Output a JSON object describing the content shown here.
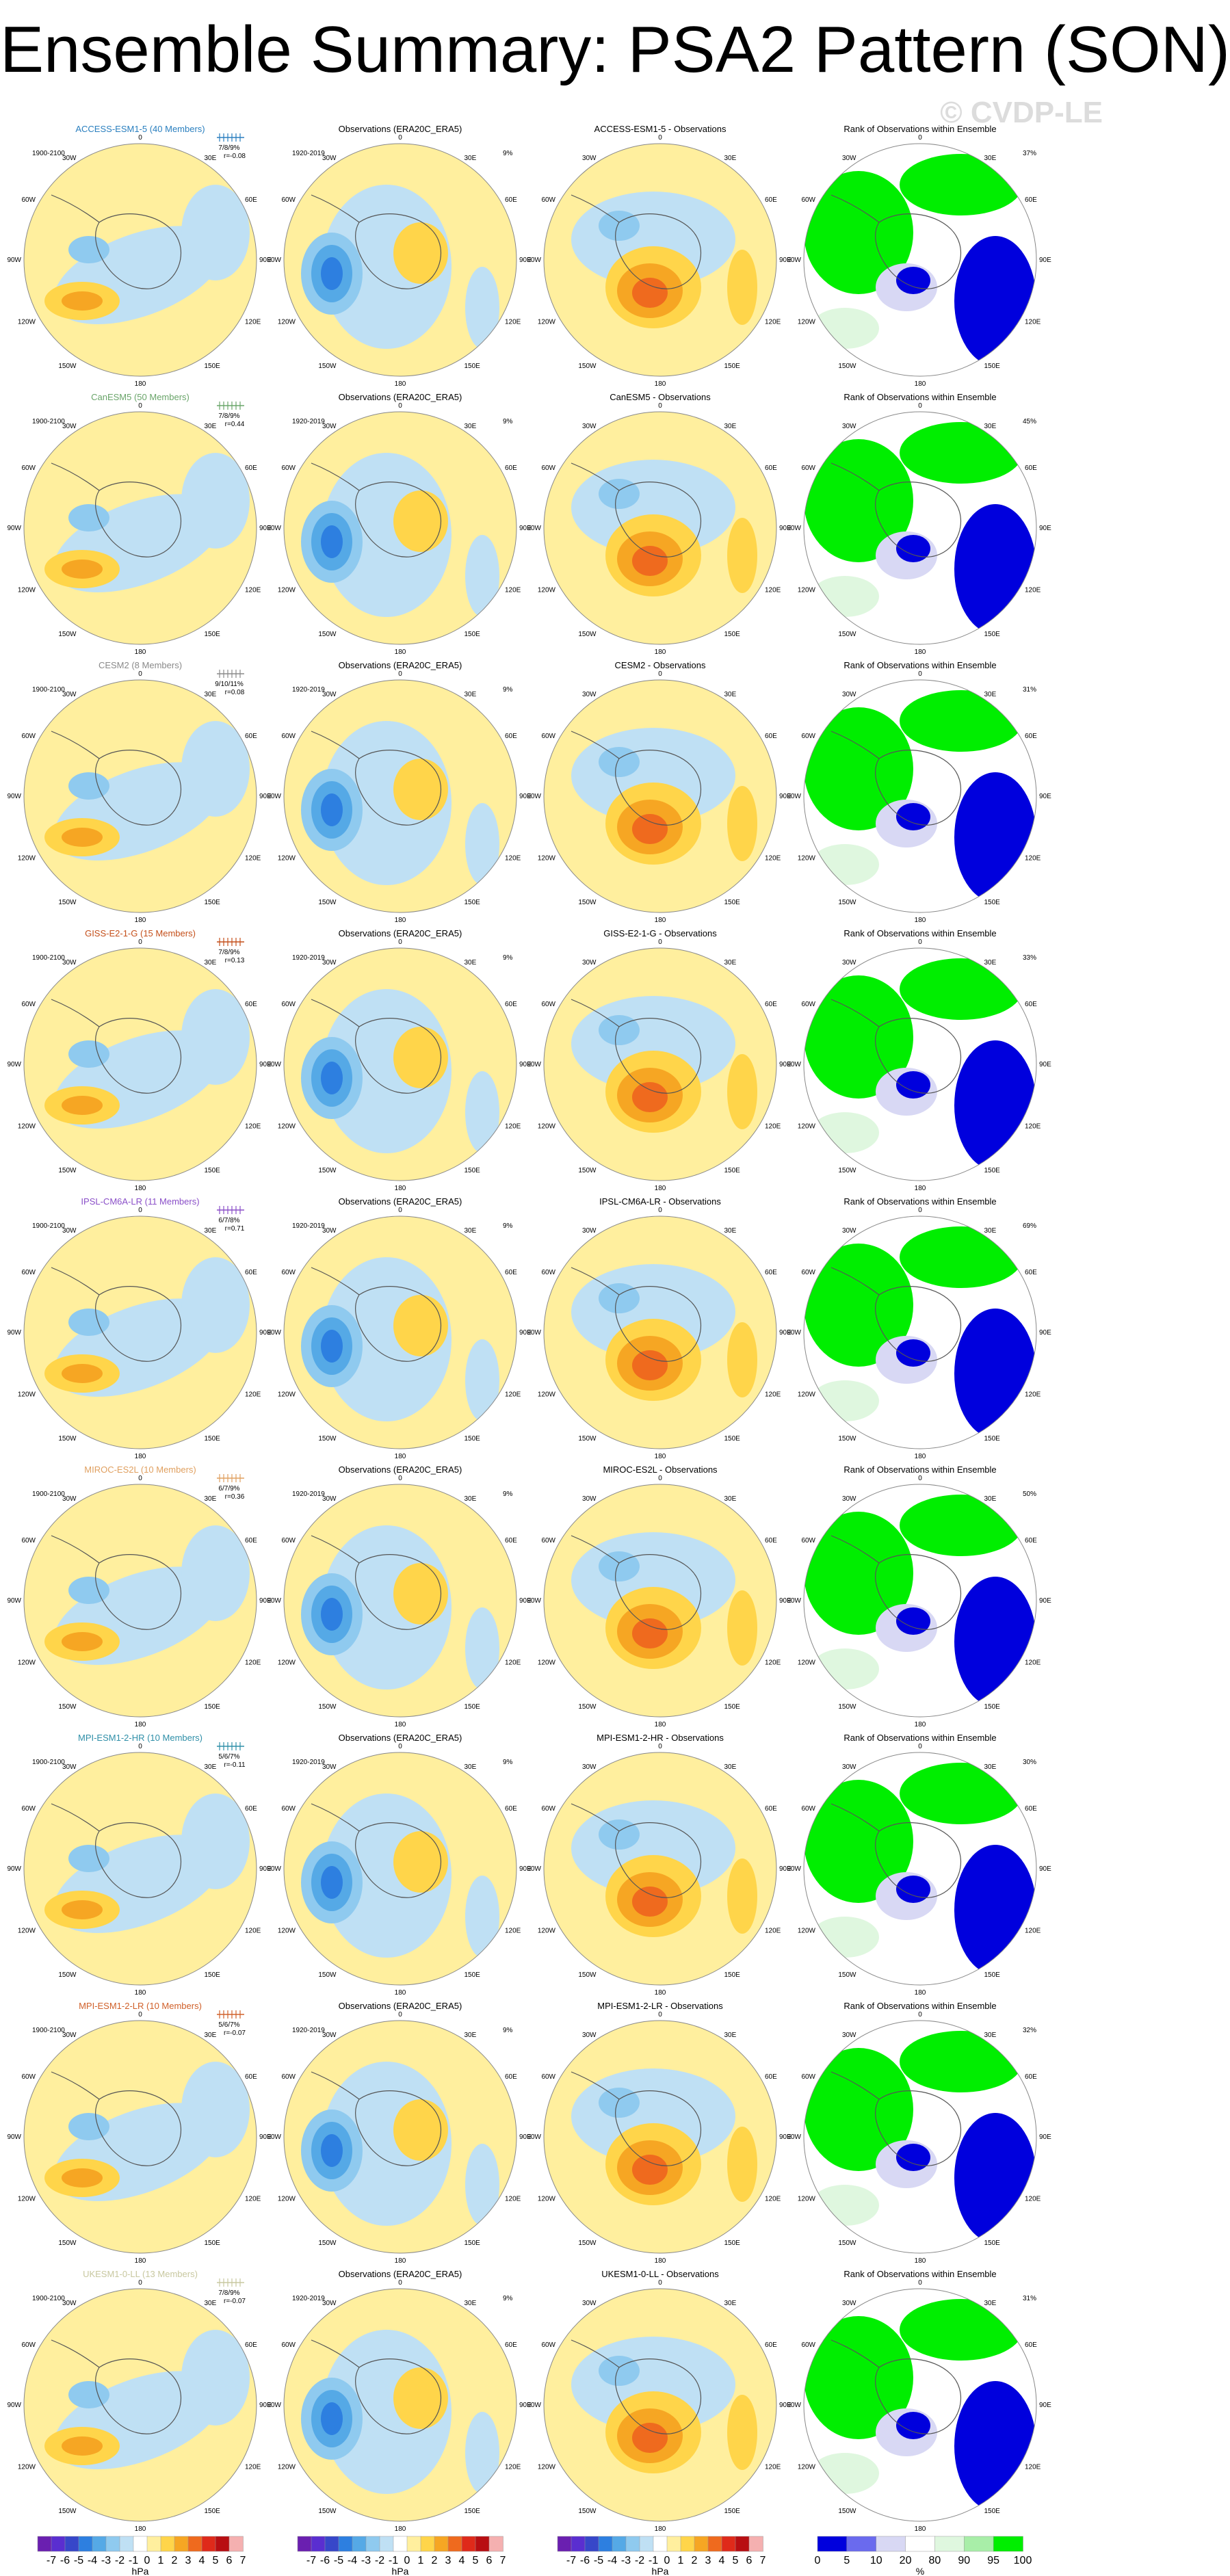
{
  "title": "Ensemble Summary: PSA2 Pattern (SON)",
  "copyright": "© CVDP-LE",
  "colors": {
    "land_outline": "#555555",
    "pos": [
      "#ffef9e",
      "#ffd54a",
      "#f6a623",
      "#ef6a1e",
      "#df2a1a",
      "#b80e12"
    ],
    "neg": [
      "#bfe0f4",
      "#8fcaef",
      "#55a9e6",
      "#2d7fe0",
      "#3747c9",
      "#6a1fb0"
    ],
    "rank_low": "#0000dd",
    "rank_lowmid": "#d8d8f4",
    "rank_mid": "#ffffff",
    "rank_high": "#dff7df",
    "rank_top": "#00ee00"
  },
  "col_titles": {
    "obs": "Observations (ERA20C_ERA5)",
    "rank": "Rank of Observations within Ensemble"
  },
  "obs_period": "1920-2019",
  "obs_pct": "9%",
  "model_period": "1900-2100",
  "lon_labels": [
    "0",
    "30W",
    "30E",
    "60W",
    "60E",
    "90W",
    "90E",
    "120W",
    "120E",
    "150W",
    "150E",
    "180"
  ],
  "rows": [
    {
      "model": "ACCESS-ESM1-5 (40 Members)",
      "color": "#2a7fbf",
      "pct": "7/8/9%",
      "r": "r=-0.08",
      "diff": "ACCESS-ESM1-5 - Observations",
      "rank_pct": "37%"
    },
    {
      "model": "CanESM5 (50 Members)",
      "color": "#6aa56a",
      "pct": "7/8/9%",
      "r": "r=0.44",
      "diff": "CanESM5 - Observations",
      "rank_pct": "45%"
    },
    {
      "model": "CESM2 (8 Members)",
      "color": "#8a8a8a",
      "pct": "9/10/11%",
      "r": "r=0.08",
      "diff": "CESM2 - Observations",
      "rank_pct": "31%"
    },
    {
      "model": "GISS-E2-1-G (15 Members)",
      "color": "#c44f1a",
      "pct": "7/8/9%",
      "r": "r=0.13",
      "diff": "GISS-E2-1-G - Observations",
      "rank_pct": "33%"
    },
    {
      "model": "IPSL-CM6A-LR (11 Members)",
      "color": "#8a4fc8",
      "pct": "6/7/8%",
      "r": "r=0.71",
      "diff": "IPSL-CM6A-LR - Observations",
      "rank_pct": "69%"
    },
    {
      "model": "MIROC-ES2L (10 Members)",
      "color": "#e0a060",
      "pct": "6/7/9%",
      "r": "r=0.36",
      "diff": "MIROC-ES2L - Observations",
      "rank_pct": "50%"
    },
    {
      "model": "MPI-ESM1-2-HR (10 Members)",
      "color": "#2f8fa8",
      "pct": "5/6/7%",
      "r": "r=-0.11",
      "diff": "MPI-ESM1-2-HR - Observations",
      "rank_pct": "30%"
    },
    {
      "model": "MPI-ESM1-2-LR (10 Members)",
      "color": "#d0602a",
      "pct": "5/6/7%",
      "r": "r=-0.07",
      "diff": "MPI-ESM1-2-LR - Observations",
      "rank_pct": "32%"
    },
    {
      "model": "UKESM1-0-LL (13 Members)",
      "color": "#c8c8a0",
      "pct": "7/8/9%",
      "r": "r=-0.07",
      "diff": "UKESM1-0-LL - Observations",
      "rank_pct": "31%"
    }
  ],
  "colorbar": {
    "ticks": [
      "-7",
      "-6",
      "-5",
      "-4",
      "-3",
      "-2",
      "-1",
      "0",
      "1",
      "2",
      "3",
      "4",
      "5",
      "6",
      "7"
    ],
    "unit": "hPa",
    "rank_ticks": [
      "0",
      "5",
      "10",
      "20",
      "80",
      "90",
      "95",
      "100"
    ],
    "rank_unit": "%"
  }
}
